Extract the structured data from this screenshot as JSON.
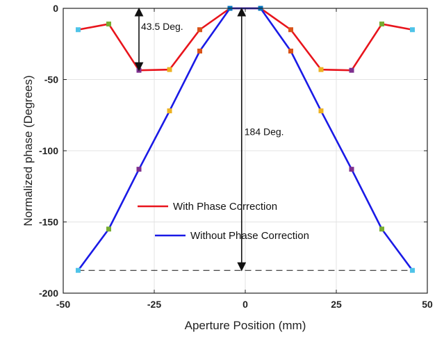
{
  "chart_data": {
    "type": "line",
    "xlabel": "Aperture Position (mm)",
    "ylabel": "Normalized phase (Degrees)",
    "xlim": [
      -50,
      50
    ],
    "ylim": [
      -200,
      0
    ],
    "xticks": [
      -50,
      -25,
      0,
      25,
      50
    ],
    "yticks": [
      0,
      -50,
      -100,
      -150,
      -200
    ],
    "xtick_labels": [
      "-50",
      "-25",
      "0",
      "25",
      "50"
    ],
    "ytick_labels": [
      "0",
      "-50",
      "-100",
      "-150",
      "-200"
    ],
    "grid": true,
    "legend_position": "lower-center",
    "x": [
      -45.9,
      -37.5,
      -29.2,
      -20.8,
      -12.5,
      -4.2,
      4.2,
      12.5,
      20.8,
      29.2,
      37.5,
      45.9
    ],
    "series": [
      {
        "name": "With Phase Correction",
        "color": "#e8141c",
        "values": [
          -15,
          -11,
          -43.5,
          -43,
          -15,
          0,
          0,
          -15,
          -43,
          -43.5,
          -11,
          -15
        ]
      },
      {
        "name": "Without Phase Correction",
        "color": "#1a1ae6",
        "values": [
          -184,
          -155,
          -113,
          -72,
          -30,
          0,
          0,
          -30,
          -72,
          -113,
          -155,
          -184
        ]
      }
    ],
    "marker_colors": [
      "#4fc3e8",
      "#77ac30",
      "#7e2f8e",
      "#edb120",
      "#d95319",
      "#0072bd",
      "#0072bd",
      "#d95319",
      "#edb120",
      "#7e2f8e",
      "#77ac30",
      "#4fc3e8"
    ],
    "annotations": [
      {
        "text": "43.5 Deg.",
        "x": -29.2,
        "y_from": 0,
        "y_to": -43.5
      },
      {
        "text": "184 Deg.",
        "x": -1,
        "y_from": 0,
        "y_to": -184
      }
    ]
  }
}
